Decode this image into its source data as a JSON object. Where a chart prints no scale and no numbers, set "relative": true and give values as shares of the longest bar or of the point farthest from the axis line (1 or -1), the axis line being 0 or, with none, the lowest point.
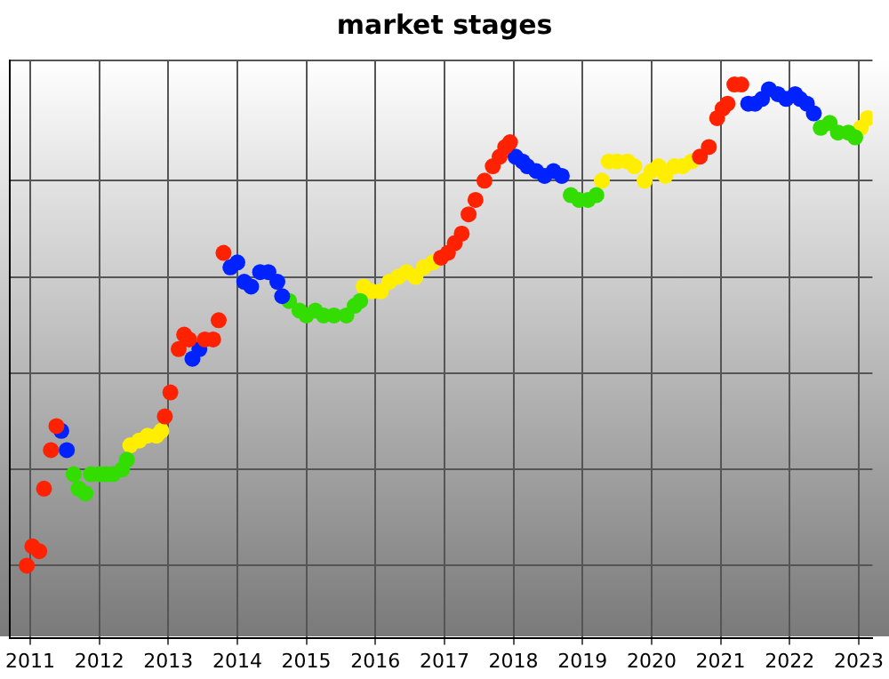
{
  "chart_data": {
    "type": "scatter",
    "title": "market stages",
    "relative": true,
    "xlim": [
      2010.7,
      2023.2
    ],
    "xticks": [
      2011,
      2012,
      2013,
      2014,
      2015,
      2016,
      2017,
      2018,
      2019,
      2020,
      2021,
      2022,
      2023
    ],
    "grid": true,
    "legend": false,
    "marker": "circle",
    "series": [
      {
        "color": "#ff2200",
        "x": [
          2010.95,
          2011.03,
          2011.13,
          2011.2,
          2011.3,
          2011.38,
          2012.95,
          2013.03,
          2013.15,
          2013.23,
          2013.3,
          2013.53,
          2013.65,
          2013.73,
          2013.8,
          2016.95,
          2017.05,
          2017.15,
          2017.25,
          2017.35,
          2017.45,
          2017.58,
          2017.7,
          2017.8,
          2017.88,
          2017.95,
          2020.7,
          2020.83,
          2020.95,
          2021.03,
          2021.1,
          2021.2,
          2021.3
        ],
        "values": [
          0,
          0.04,
          0.03,
          0.16,
          0.24,
          0.29,
          0.31,
          0.36,
          0.45,
          0.48,
          0.47,
          0.47,
          0.47,
          0.51,
          0.65,
          0.64,
          0.65,
          0.67,
          0.69,
          0.73,
          0.76,
          0.8,
          0.83,
          0.85,
          0.87,
          0.88,
          0.85,
          0.87,
          0.93,
          0.95,
          0.96,
          1,
          1
        ]
      },
      {
        "color": "#0022ff",
        "x": [
          2011.45,
          2011.53,
          2013.35,
          2013.45,
          2013.9,
          2014,
          2014.1,
          2014.2,
          2014.33,
          2014.45,
          2014.58,
          2014.65,
          2018.03,
          2018.13,
          2018.2,
          2018.33,
          2018.45,
          2018.58,
          2018.7,
          2021.4,
          2021.5,
          2021.6,
          2021.7,
          2021.83,
          2021.95,
          2022.08,
          2022.15,
          2022.25,
          2022.35
        ],
        "values": [
          0.28,
          0.24,
          0.43,
          0.45,
          0.62,
          0.63,
          0.59,
          0.58,
          0.61,
          0.61,
          0.59,
          0.56,
          0.85,
          0.84,
          0.83,
          0.82,
          0.81,
          0.82,
          0.81,
          0.96,
          0.96,
          0.97,
          0.99,
          0.98,
          0.97,
          0.98,
          0.97,
          0.96,
          0.94
        ]
      },
      {
        "color": "#33dd00",
        "x": [
          2011.63,
          2011.7,
          2011.8,
          2011.88,
          2012,
          2012.1,
          2012.2,
          2012.33,
          2012.4,
          2014.75,
          2014.9,
          2015,
          2015.13,
          2015.25,
          2015.4,
          2015.58,
          2015.7,
          2015.78,
          2018.83,
          2018.95,
          2019.08,
          2019.2,
          2022.45,
          2022.58,
          2022.7,
          2022.85,
          2022.95
        ],
        "values": [
          0.19,
          0.16,
          0.15,
          0.19,
          0.19,
          0.19,
          0.19,
          0.2,
          0.22,
          0.55,
          0.53,
          0.52,
          0.53,
          0.52,
          0.52,
          0.52,
          0.54,
          0.55,
          0.77,
          0.76,
          0.76,
          0.77,
          0.91,
          0.92,
          0.9,
          0.9,
          0.89
        ]
      },
      {
        "color": "#ffee00",
        "x": [
          2012.45,
          2012.58,
          2012.7,
          2012.83,
          2012.9,
          2015.83,
          2015.95,
          2016.08,
          2016.2,
          2016.33,
          2016.45,
          2016.58,
          2016.7,
          2016.83,
          2019.28,
          2019.38,
          2019.5,
          2019.65,
          2019.75,
          2019.9,
          2020,
          2020.1,
          2020.2,
          2020.33,
          2020.45,
          2020.58,
          2023.03,
          2023.13
        ],
        "values": [
          0.25,
          0.26,
          0.27,
          0.27,
          0.28,
          0.58,
          0.57,
          0.57,
          0.59,
          0.6,
          0.61,
          0.6,
          0.62,
          0.63,
          0.8,
          0.84,
          0.84,
          0.84,
          0.83,
          0.8,
          0.82,
          0.83,
          0.81,
          0.83,
          0.83,
          0.84,
          0.91,
          0.93
        ]
      }
    ]
  }
}
